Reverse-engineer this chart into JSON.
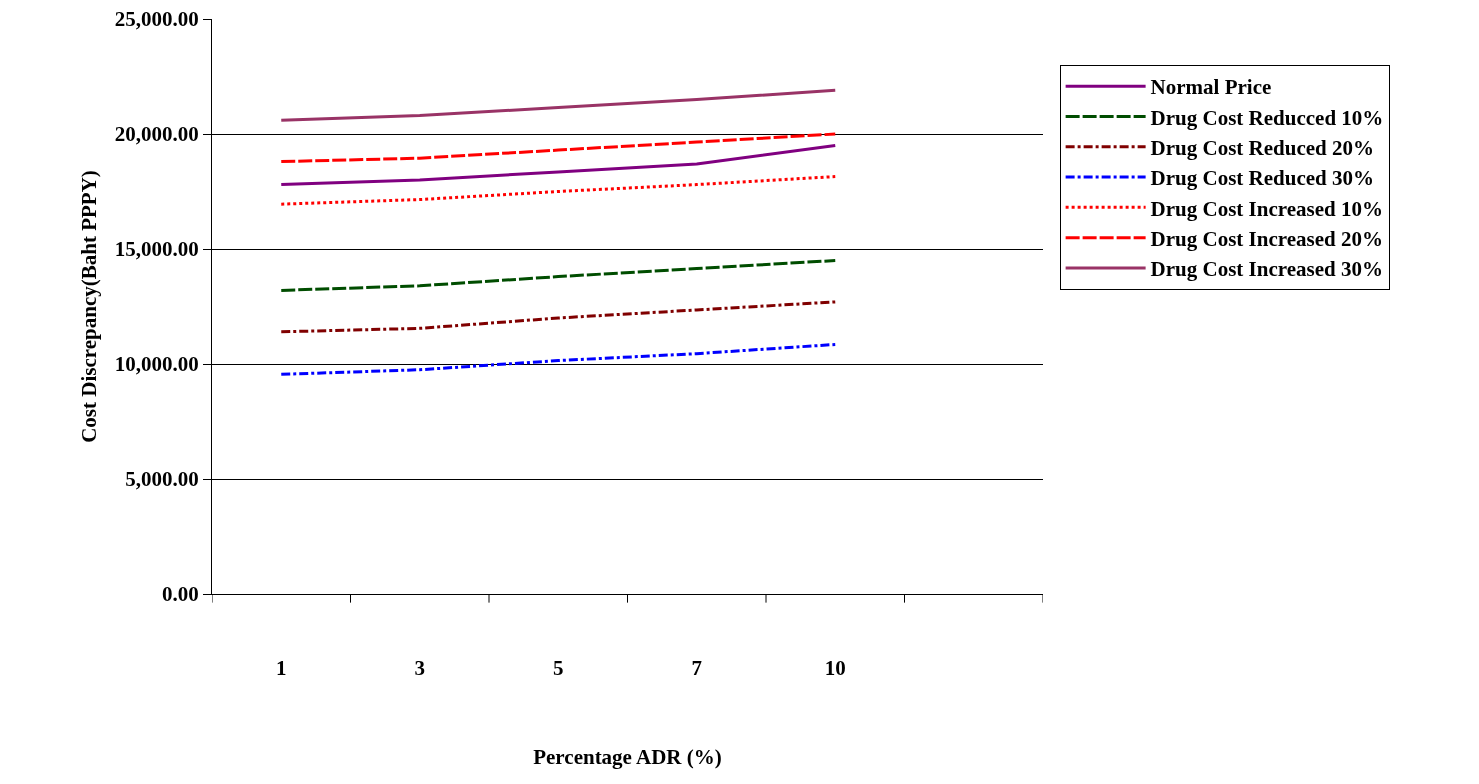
{
  "chart_data": {
    "type": "line",
    "xlabel": "Percentage ADR (%)",
    "ylabel": "Cost Discrepancy(Baht PPPY)",
    "categories": [
      "1",
      "3",
      "5",
      "7",
      "10",
      null
    ],
    "series": [
      {
        "name": "Normal Price",
        "color": "#800080",
        "line_style": "solid",
        "values": [
          17800,
          18000,
          18350,
          18700,
          19500,
          null
        ]
      },
      {
        "name": "Drug Cost Reducced 10%",
        "color": "#004d00",
        "line_style": "dashed",
        "values": [
          13200,
          13400,
          13800,
          14150,
          14500,
          null
        ]
      },
      {
        "name": "Drug Cost Reduced 20%",
        "color": "#800000",
        "line_style": "dashdot",
        "values": [
          11400,
          11550,
          12000,
          12350,
          12700,
          null
        ]
      },
      {
        "name": "Drug Cost Reduced 30%",
        "color": "#0000ff",
        "line_style": "dashdot",
        "values": [
          9550,
          9750,
          10150,
          10450,
          10850,
          null
        ]
      },
      {
        "name": "Drug Cost Increased 10%",
        "color": "#ff0000",
        "line_style": "dotted",
        "values": [
          16950,
          17150,
          17500,
          17800,
          18150,
          null
        ]
      },
      {
        "name": "Drug Cost Increased 20%",
        "color": "#ff0000",
        "line_style": "dashed",
        "values": [
          18800,
          18950,
          19300,
          19650,
          20000,
          null
        ]
      },
      {
        "name": "Drug Cost Increased 30%",
        "color": "#993366",
        "line_style": "solid",
        "values": [
          20600,
          20800,
          21150,
          21500,
          21900,
          null
        ]
      }
    ],
    "ylim": [
      0,
      25000
    ],
    "yticks": [
      {
        "value": 0,
        "label": "0.00"
      },
      {
        "value": 5000,
        "label": "5,000.00"
      },
      {
        "value": 10000,
        "label": "10,000.00"
      },
      {
        "value": 15000,
        "label": "15,000.00"
      },
      {
        "value": 20000,
        "label": "20,000.00"
      },
      {
        "value": 25000,
        "label": "25,000.00"
      }
    ],
    "grid": "y",
    "legend": "right",
    "marker": "none"
  }
}
